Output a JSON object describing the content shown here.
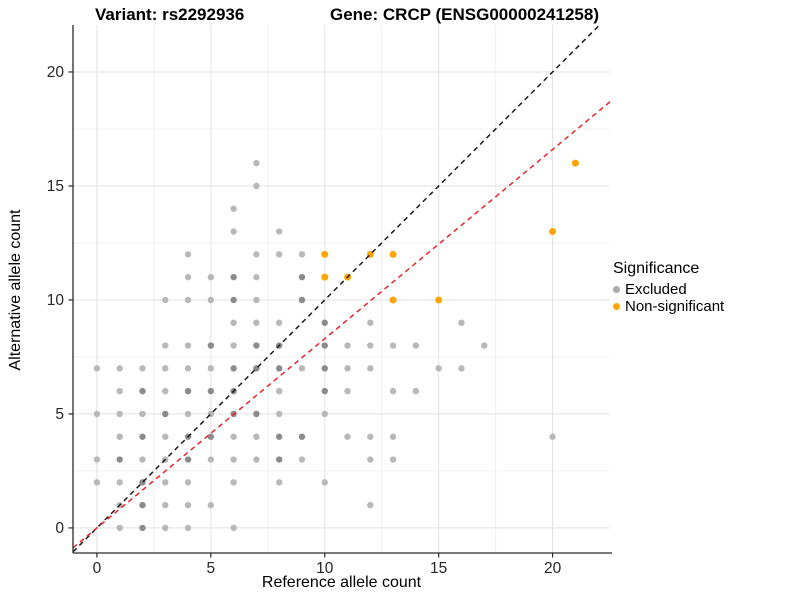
{
  "chart_data": {
    "type": "scatter",
    "title_left": "Variant: rs2292936",
    "title_right": "Gene: CRCP (ENSG00000241258)",
    "xlabel": "Reference allele count",
    "ylabel": "Alternative allele count",
    "xlim": [
      -1.05,
      22.52
    ],
    "ylim": [
      -1.1,
      22.06
    ],
    "xticks": [
      0,
      5,
      10,
      15,
      20
    ],
    "yticks": [
      0,
      5,
      10,
      15,
      20
    ],
    "minor_xticks": [
      2.5,
      7.5,
      12.5,
      17.5
    ],
    "minor_yticks": [
      2.5,
      7.5,
      12.5,
      17.5
    ],
    "grid": true,
    "legend": {
      "title": "Significance",
      "position": "right",
      "items": [
        {
          "label": "Excluded",
          "color": "#ababab"
        },
        {
          "label": "Non-significant",
          "color": "#ffa500"
        }
      ]
    },
    "lines": [
      {
        "name": "identity-line",
        "slope": 1.0,
        "intercept": 0.0,
        "color": "#1a1a1a",
        "dash": "5 4"
      },
      {
        "name": "fitted-line",
        "slope": 0.83,
        "intercept": 0.0,
        "color": "#ee2222",
        "dash": "5 4"
      }
    ],
    "series": [
      {
        "name": "Excluded",
        "color_light": "#b8b8b8",
        "color_dark": "#8b8b8b",
        "points": [
          [
            7,
            16
          ],
          [
            7,
            15
          ],
          [
            6,
            14
          ],
          [
            6,
            13
          ],
          [
            8,
            13
          ],
          [
            4,
            12
          ],
          [
            7,
            12
          ],
          [
            8,
            12
          ],
          [
            9,
            12
          ],
          [
            4,
            11
          ],
          [
            5,
            11
          ],
          [
            6,
            11,
            1
          ],
          [
            7,
            11
          ],
          [
            9,
            11,
            1
          ],
          [
            3,
            10
          ],
          [
            4,
            10
          ],
          [
            5,
            10
          ],
          [
            6,
            10,
            1
          ],
          [
            7,
            10
          ],
          [
            9,
            10,
            1
          ],
          [
            6,
            9
          ],
          [
            7,
            9
          ],
          [
            8,
            9
          ],
          [
            10,
            9,
            1
          ],
          [
            12,
            9
          ],
          [
            16,
            9
          ],
          [
            3,
            8
          ],
          [
            4,
            8
          ],
          [
            5,
            8,
            1
          ],
          [
            6,
            8
          ],
          [
            7,
            8,
            1
          ],
          [
            8,
            8,
            1
          ],
          [
            10,
            8,
            1
          ],
          [
            11,
            8
          ],
          [
            12,
            8
          ],
          [
            13,
            8
          ],
          [
            14,
            8
          ],
          [
            17,
            8
          ],
          [
            0,
            7
          ],
          [
            1,
            7
          ],
          [
            2,
            7
          ],
          [
            3,
            7
          ],
          [
            4,
            7
          ],
          [
            5,
            7
          ],
          [
            6,
            7,
            1
          ],
          [
            7,
            7,
            1
          ],
          [
            8,
            7,
            1
          ],
          [
            9,
            7
          ],
          [
            10,
            7,
            1
          ],
          [
            11,
            7
          ],
          [
            12,
            7
          ],
          [
            15,
            7
          ],
          [
            16,
            7
          ],
          [
            1,
            6
          ],
          [
            2,
            6,
            1
          ],
          [
            3,
            6
          ],
          [
            4,
            6,
            1
          ],
          [
            5,
            6,
            1
          ],
          [
            6,
            6,
            1
          ],
          [
            8,
            6
          ],
          [
            10,
            6,
            1
          ],
          [
            11,
            6
          ],
          [
            13,
            6
          ],
          [
            14,
            6
          ],
          [
            0,
            5
          ],
          [
            1,
            5
          ],
          [
            2,
            5
          ],
          [
            3,
            5,
            1
          ],
          [
            4,
            5
          ],
          [
            5,
            5
          ],
          [
            6,
            5,
            1
          ],
          [
            7,
            5,
            1
          ],
          [
            8,
            5
          ],
          [
            10,
            5
          ],
          [
            1,
            4
          ],
          [
            2,
            4,
            1
          ],
          [
            3,
            4
          ],
          [
            4,
            4,
            1
          ],
          [
            5,
            4,
            1
          ],
          [
            6,
            4
          ],
          [
            7,
            4
          ],
          [
            8,
            4,
            1
          ],
          [
            9,
            4,
            1
          ],
          [
            11,
            4
          ],
          [
            12,
            4
          ],
          [
            13,
            4
          ],
          [
            20,
            4
          ],
          [
            0,
            3
          ],
          [
            1,
            3,
            1
          ],
          [
            2,
            3
          ],
          [
            3,
            3
          ],
          [
            4,
            3,
            1
          ],
          [
            5,
            3
          ],
          [
            6,
            3
          ],
          [
            7,
            3
          ],
          [
            8,
            3,
            1
          ],
          [
            9,
            3
          ],
          [
            12,
            3
          ],
          [
            13,
            3
          ],
          [
            0,
            2
          ],
          [
            1,
            2
          ],
          [
            2,
            2,
            1
          ],
          [
            3,
            2
          ],
          [
            4,
            2
          ],
          [
            6,
            2
          ],
          [
            8,
            2
          ],
          [
            10,
            2
          ],
          [
            1,
            1
          ],
          [
            2,
            1,
            1
          ],
          [
            3,
            1
          ],
          [
            4,
            1
          ],
          [
            5,
            1
          ],
          [
            12,
            1
          ],
          [
            1,
            0
          ],
          [
            2,
            0,
            1
          ],
          [
            3,
            0
          ],
          [
            4,
            0
          ],
          [
            6,
            0
          ]
        ]
      },
      {
        "name": "Non-significant",
        "color": "#ffa500",
        "points": [
          [
            10,
            12
          ],
          [
            12,
            12
          ],
          [
            13,
            12
          ],
          [
            10,
            11
          ],
          [
            11,
            11
          ],
          [
            13,
            10
          ],
          [
            15,
            10
          ],
          [
            20,
            13
          ],
          [
            21,
            16
          ]
        ]
      }
    ],
    "style": {
      "major_grid_color": "#e2e2e2",
      "minor_grid_color": "#f0f0f0",
      "axis_color": "#2a2a2a",
      "tick_label_color": "#262626",
      "point_radius": 3.2
    }
  }
}
